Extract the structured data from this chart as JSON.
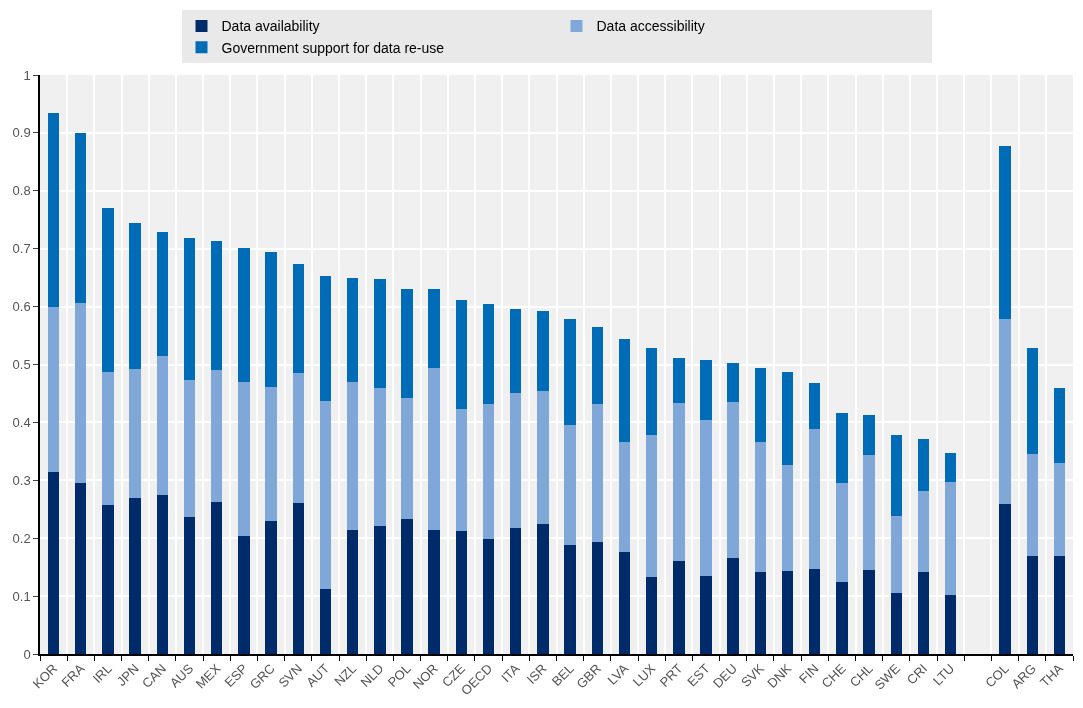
{
  "chart_data": {
    "type": "bar",
    "stacked": true,
    "categories": [
      "KOR",
      "FRA",
      "IRL",
      "JPN",
      "CAN",
      "AUS",
      "MEX",
      "ESP",
      "GRC",
      "SVN",
      "AUT",
      "NZL",
      "NLD",
      "POL",
      "NOR",
      "CZE",
      "OECD",
      "ITA",
      "ISR",
      "BEL",
      "GBR",
      "LVA",
      "LUX",
      "PRT",
      "EST",
      "DEU",
      "SVK",
      "DNK",
      "FIN",
      "CHE",
      "CHL",
      "SWE",
      "CRI",
      "LTU",
      null,
      "COL",
      "ARG",
      "THA"
    ],
    "series": [
      {
        "name": "Data availability",
        "color": "#002b6b",
        "values": [
          0.315,
          0.295,
          0.258,
          0.27,
          0.275,
          0.237,
          0.263,
          0.203,
          0.23,
          0.261,
          0.113,
          0.214,
          0.221,
          0.233,
          0.214,
          0.212,
          0.198,
          0.218,
          0.225,
          0.188,
          0.193,
          0.176,
          0.133,
          0.16,
          0.135,
          0.166,
          0.142,
          0.144,
          0.147,
          0.125,
          0.145,
          0.105,
          0.141,
          0.102,
          null,
          0.259,
          0.169,
          0.169
        ]
      },
      {
        "name": "Data accessibility",
        "color": "#7fa8d9",
        "values": [
          0.285,
          0.312,
          0.229,
          0.223,
          0.24,
          0.236,
          0.227,
          0.266,
          0.232,
          0.224,
          0.324,
          0.256,
          0.238,
          0.21,
          0.28,
          0.211,
          0.234,
          0.233,
          0.229,
          0.208,
          0.239,
          0.191,
          0.245,
          0.274,
          0.269,
          0.27,
          0.224,
          0.182,
          0.242,
          0.171,
          0.199,
          0.133,
          0.141,
          0.195,
          null,
          0.32,
          0.177,
          0.161
        ]
      },
      {
        "name": "Government support for data re-use",
        "color": "#006bb6",
        "values": [
          0.335,
          0.293,
          0.284,
          0.252,
          0.214,
          0.245,
          0.224,
          0.233,
          0.233,
          0.189,
          0.215,
          0.18,
          0.189,
          0.188,
          0.136,
          0.189,
          0.173,
          0.145,
          0.139,
          0.182,
          0.133,
          0.177,
          0.151,
          0.078,
          0.104,
          0.066,
          0.128,
          0.161,
          0.079,
          0.12,
          0.068,
          0.14,
          0.09,
          0.051,
          null,
          0.299,
          0.183,
          0.129
        ]
      }
    ],
    "ylim": [
      0,
      1
    ],
    "yticks": [
      0,
      0.1,
      0.2,
      0.3,
      0.4,
      0.5,
      0.6,
      0.7,
      0.8,
      0.9,
      1
    ],
    "grid": true,
    "legend": "top"
  }
}
